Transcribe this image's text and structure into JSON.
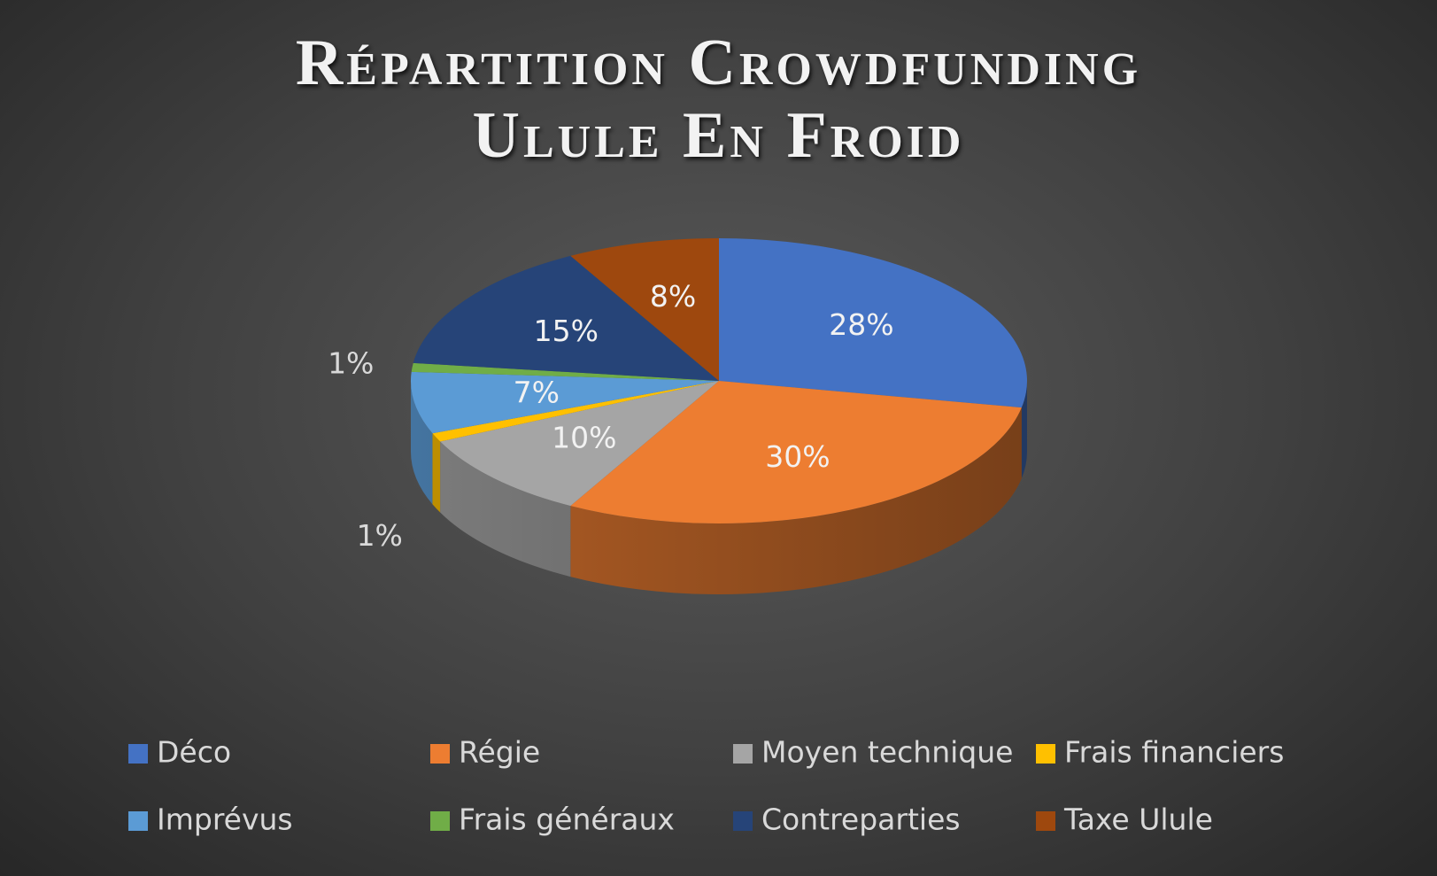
{
  "chart_data": {
    "type": "pie",
    "title": "Répartition Crowdfunding Ulule En Froid",
    "categories": [
      "Déco",
      "Régie",
      "Moyen technique",
      "Frais financiers",
      "Imprévus",
      "Frais généraux",
      "Contreparties",
      "Taxe Ulule"
    ],
    "values": [
      28,
      30,
      10,
      1,
      7,
      1,
      15,
      8
    ],
    "value_labels": [
      "28%",
      "30%",
      "10%",
      "1%",
      "7%",
      "1%",
      "15%",
      "8%"
    ],
    "colors": [
      "#4472c4",
      "#ed7d31",
      "#a5a5a5",
      "#ffc000",
      "#5b9bd5",
      "#70ad47",
      "#264478",
      "#9e480e"
    ],
    "legend": "bottom"
  }
}
